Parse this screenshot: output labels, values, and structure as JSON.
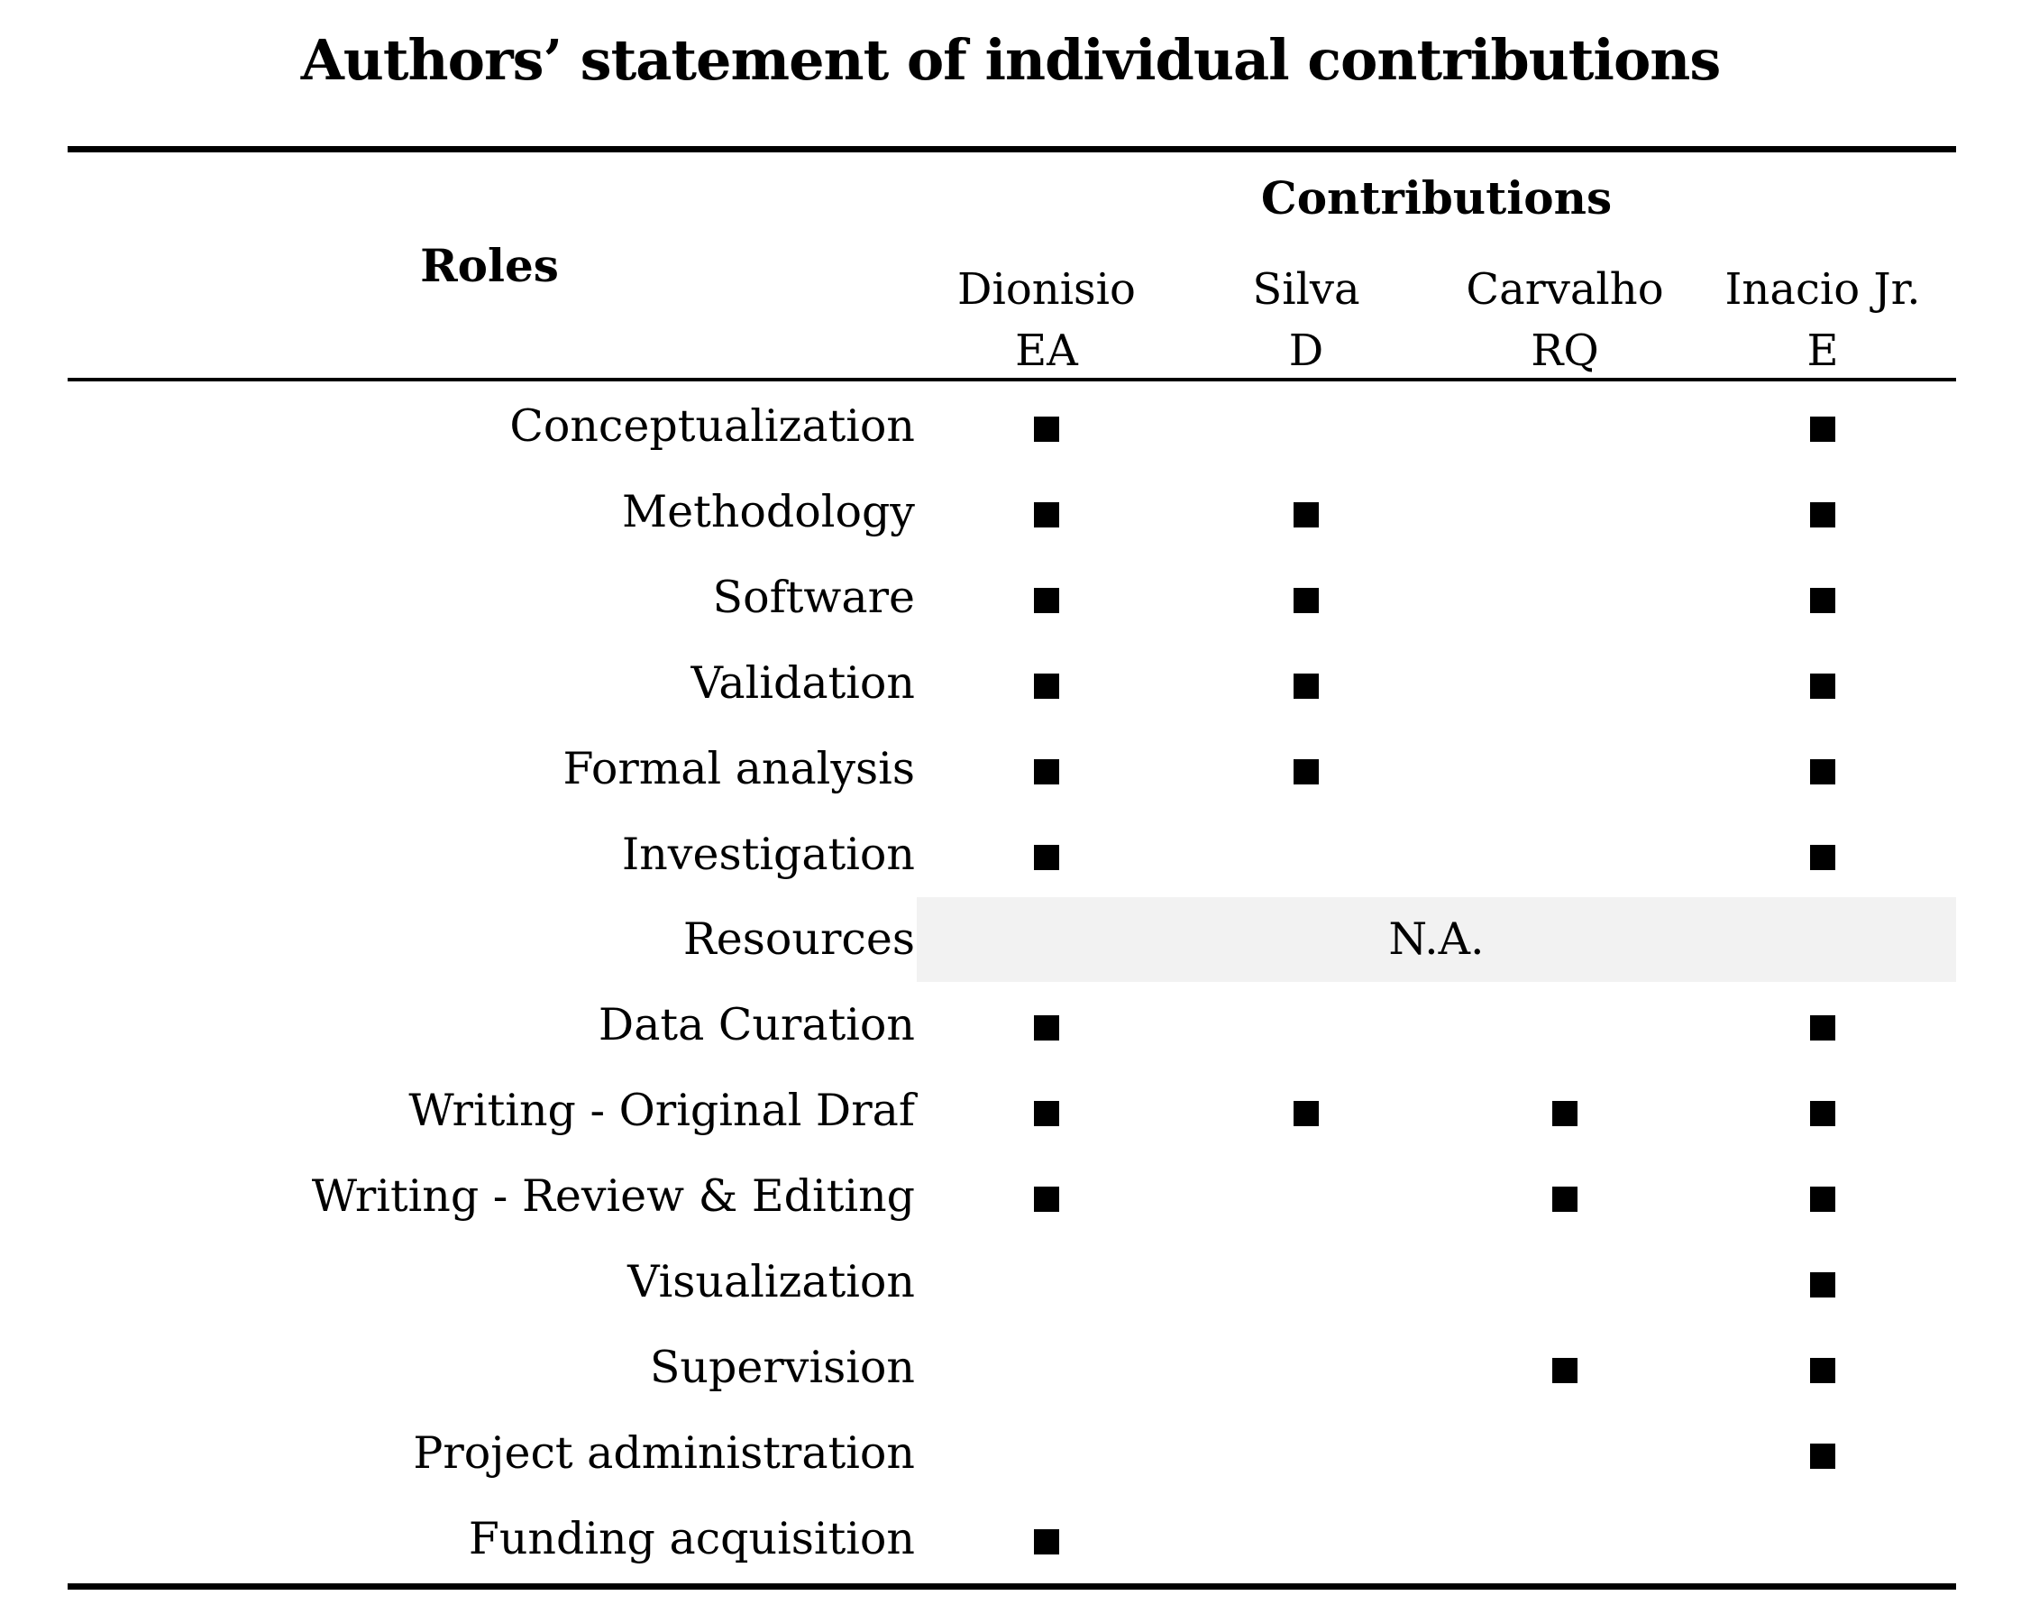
{
  "title": "Authors’ statement of individual contributions",
  "header": {
    "roles_label": "Roles",
    "contributions_label": "Contributions",
    "authors": [
      {
        "line1": "Dionisio",
        "line2": "EA"
      },
      {
        "line1": "Silva",
        "line2": "D"
      },
      {
        "line1": "Carvalho",
        "line2": "RQ"
      },
      {
        "line1": "Inacio Jr.",
        "line2": "E"
      }
    ]
  },
  "mark_symbol": "filled-square",
  "rows": [
    {
      "role": "Conceptualization",
      "marks": [
        true,
        false,
        false,
        true
      ]
    },
    {
      "role": "Methodology",
      "marks": [
        true,
        true,
        false,
        true
      ]
    },
    {
      "role": "Software",
      "marks": [
        true,
        true,
        false,
        true
      ]
    },
    {
      "role": "Validation",
      "marks": [
        true,
        true,
        false,
        true
      ]
    },
    {
      "role": "Formal analysis",
      "marks": [
        true,
        true,
        false,
        true
      ]
    },
    {
      "role": "Investigation",
      "marks": [
        true,
        false,
        false,
        true
      ]
    },
    {
      "role": "Resources",
      "na": "N.A."
    },
    {
      "role": "Data Curation",
      "marks": [
        true,
        false,
        false,
        true
      ]
    },
    {
      "role": "Writing - Original Draf",
      "marks": [
        true,
        true,
        true,
        true
      ]
    },
    {
      "role": "Writing - Review & Editing",
      "marks": [
        true,
        false,
        true,
        true
      ]
    },
    {
      "role": "Visualization",
      "marks": [
        false,
        false,
        false,
        true
      ]
    },
    {
      "role": "Supervision",
      "marks": [
        false,
        false,
        true,
        true
      ]
    },
    {
      "role": "Project administration",
      "marks": [
        false,
        false,
        false,
        true
      ]
    },
    {
      "role": "Funding acquisition",
      "marks": [
        true,
        false,
        false,
        false
      ]
    }
  ]
}
